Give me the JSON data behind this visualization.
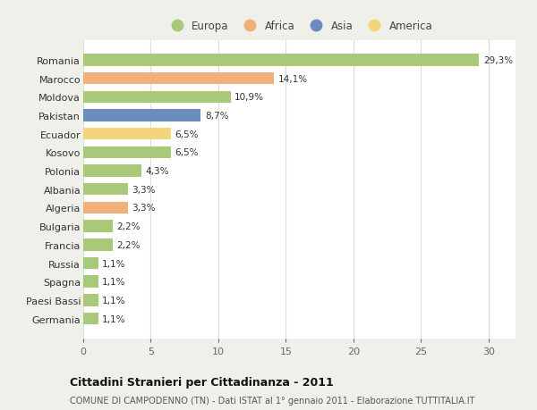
{
  "categories": [
    "Romania",
    "Marocco",
    "Moldova",
    "Pakistan",
    "Ecuador",
    "Kosovo",
    "Polonia",
    "Albania",
    "Algeria",
    "Bulgaria",
    "Francia",
    "Russia",
    "Spagna",
    "Paesi Bassi",
    "Germania"
  ],
  "values": [
    29.3,
    14.1,
    10.9,
    8.7,
    6.5,
    6.5,
    4.3,
    3.3,
    3.3,
    2.2,
    2.2,
    1.1,
    1.1,
    1.1,
    1.1
  ],
  "labels": [
    "29,3%",
    "14,1%",
    "10,9%",
    "8,7%",
    "6,5%",
    "6,5%",
    "4,3%",
    "3,3%",
    "3,3%",
    "2,2%",
    "2,2%",
    "1,1%",
    "1,1%",
    "1,1%",
    "1,1%"
  ],
  "colors": [
    "#a8c87a",
    "#f0b07a",
    "#a8c87a",
    "#6b8cbf",
    "#f5d57a",
    "#a8c87a",
    "#a8c87a",
    "#a8c87a",
    "#f0b07a",
    "#a8c87a",
    "#a8c87a",
    "#a8c87a",
    "#a8c87a",
    "#a8c87a",
    "#a8c87a"
  ],
  "legend_labels": [
    "Europa",
    "Africa",
    "Asia",
    "America"
  ],
  "legend_colors": [
    "#a8c87a",
    "#f0b07a",
    "#6b8cbf",
    "#f5d57a"
  ],
  "xlim": [
    0,
    32
  ],
  "xticks": [
    0,
    5,
    10,
    15,
    20,
    25,
    30
  ],
  "title": "Cittadini Stranieri per Cittadinanza - 2011",
  "subtitle": "COMUNE DI CAMPODENNO (TN) - Dati ISTAT al 1° gennaio 2011 - Elaborazione TUTTITALIA.IT",
  "background_color": "#f0f0eb",
  "bar_background": "#ffffff",
  "grid_color": "#dddddd",
  "label_fontsize": 7.5,
  "ytick_fontsize": 8,
  "xtick_fontsize": 8
}
